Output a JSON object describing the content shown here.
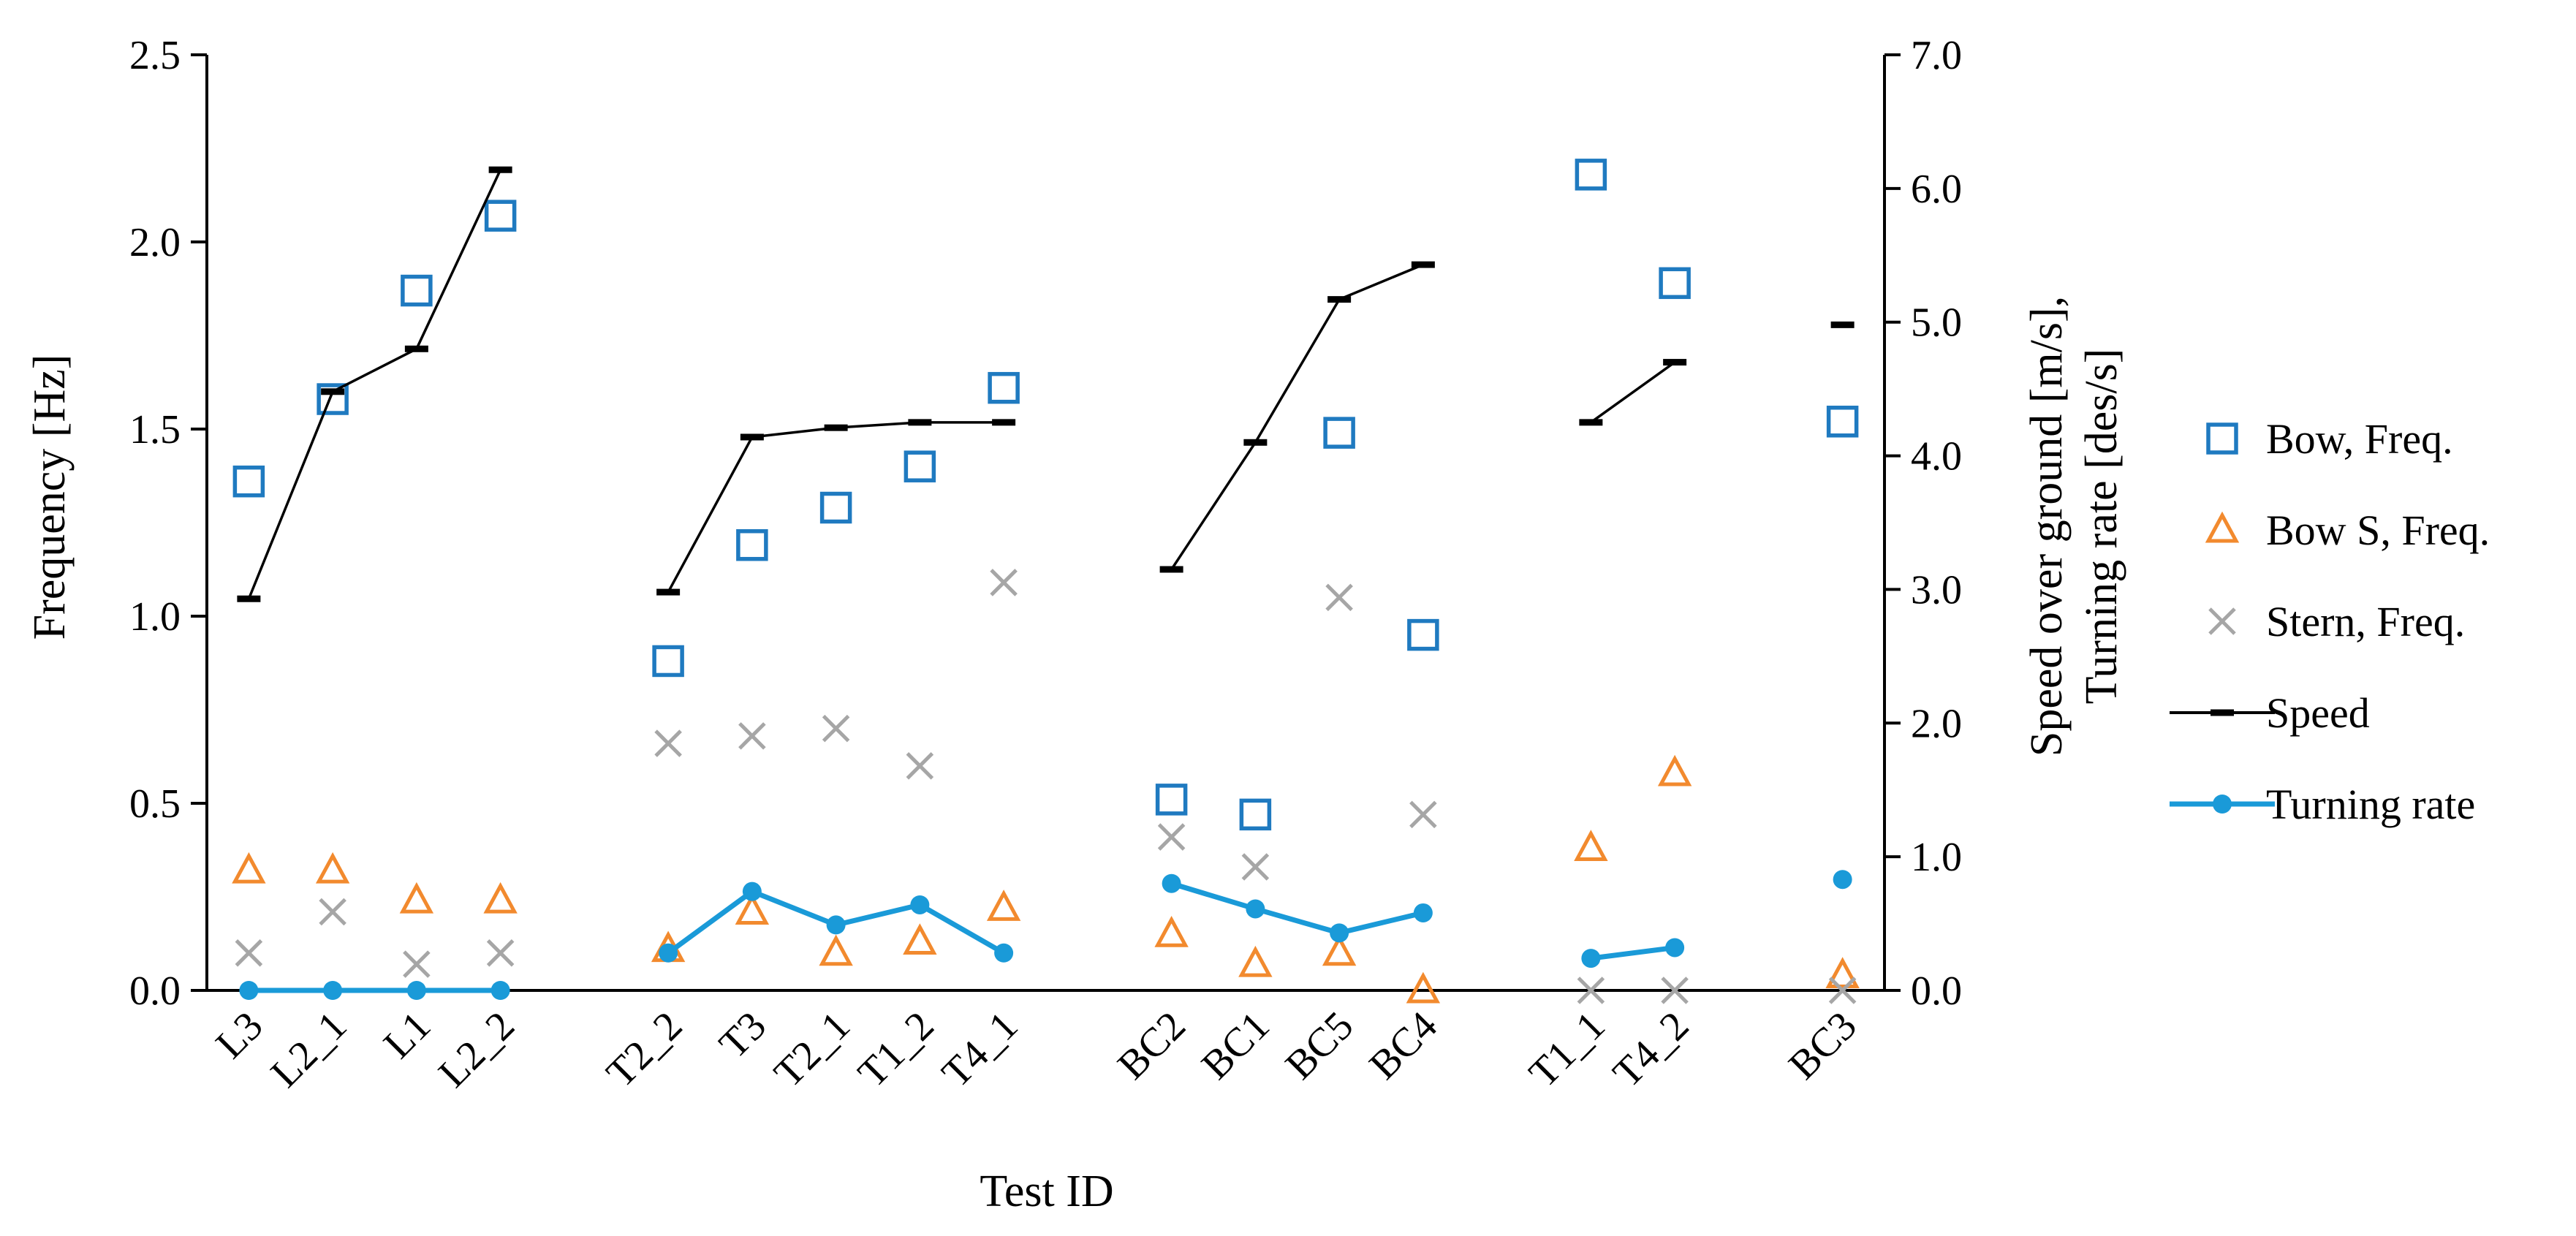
{
  "chart_data": {
    "type": "scatter",
    "title": "",
    "xlabel": "Test ID",
    "ylabel_left": "Frequency [Hz]",
    "ylabel_right_line1": "Speed over ground [m/s],",
    "ylabel_right_line2": "Turning rate [des/s]",
    "ylim_left": [
      0,
      2.5
    ],
    "ylim_right": [
      0,
      7.0
    ],
    "yticks_left": [
      "0.0",
      "0.5",
      "1.0",
      "1.5",
      "2.0",
      "2.5"
    ],
    "yticks_right": [
      "0.0",
      "1.0",
      "2.0",
      "3.0",
      "4.0",
      "5.0",
      "6.0",
      "7.0"
    ],
    "categories": [
      "L3",
      "L2_1",
      "L1",
      "L2_2",
      "T2_2",
      "T3",
      "T2_1",
      "T1_2",
      "T4_1",
      "BC2",
      "BC1",
      "BC5",
      "BC4",
      "T1_1",
      "T4_2",
      "BC3"
    ],
    "groups": [
      [
        0,
        1,
        2,
        3
      ],
      [
        4,
        5,
        6,
        7,
        8
      ],
      [
        9,
        10,
        11,
        12
      ],
      [
        13,
        14
      ],
      [
        15
      ]
    ],
    "series": [
      {
        "name": "Bow, Freq.",
        "axis": "left",
        "marker": "square",
        "color": "#1f7ac0",
        "values": [
          1.36,
          1.58,
          1.87,
          2.07,
          0.88,
          1.19,
          1.29,
          1.4,
          1.61,
          0.51,
          0.47,
          1.49,
          0.95,
          2.18,
          1.89,
          1.52
        ]
      },
      {
        "name": "Bow S, Freq.",
        "axis": "left",
        "marker": "triangle",
        "color": "#f28a2e",
        "values": [
          0.32,
          0.32,
          0.24,
          0.24,
          0.11,
          0.21,
          0.1,
          0.13,
          0.22,
          0.15,
          0.07,
          0.1,
          0.0,
          0.38,
          0.58,
          0.04
        ]
      },
      {
        "name": "Stern, Freq.",
        "axis": "left",
        "marker": "x",
        "color": "#a6a6a6",
        "values": [
          0.1,
          0.21,
          0.07,
          0.1,
          0.66,
          0.68,
          0.7,
          0.6,
          1.09,
          0.41,
          0.33,
          1.05,
          0.47,
          0.0,
          0.0,
          0.0
        ]
      },
      {
        "name": "Speed",
        "axis": "right",
        "marker": "dash-line",
        "color": "#000000",
        "values": [
          2.93,
          4.48,
          4.8,
          6.14,
          2.98,
          4.14,
          4.21,
          4.25,
          4.25,
          3.15,
          4.1,
          5.17,
          5.43,
          4.25,
          4.7,
          4.98
        ]
      },
      {
        "name": "Turning rate",
        "axis": "right",
        "marker": "circle-line",
        "color": "#1a9ad8",
        "values": [
          0.0,
          0.0,
          0.0,
          0.0,
          0.28,
          0.74,
          0.49,
          0.64,
          0.28,
          0.8,
          0.61,
          0.43,
          0.58,
          0.24,
          0.32,
          0.83
        ]
      }
    ],
    "legend_position": "right"
  }
}
